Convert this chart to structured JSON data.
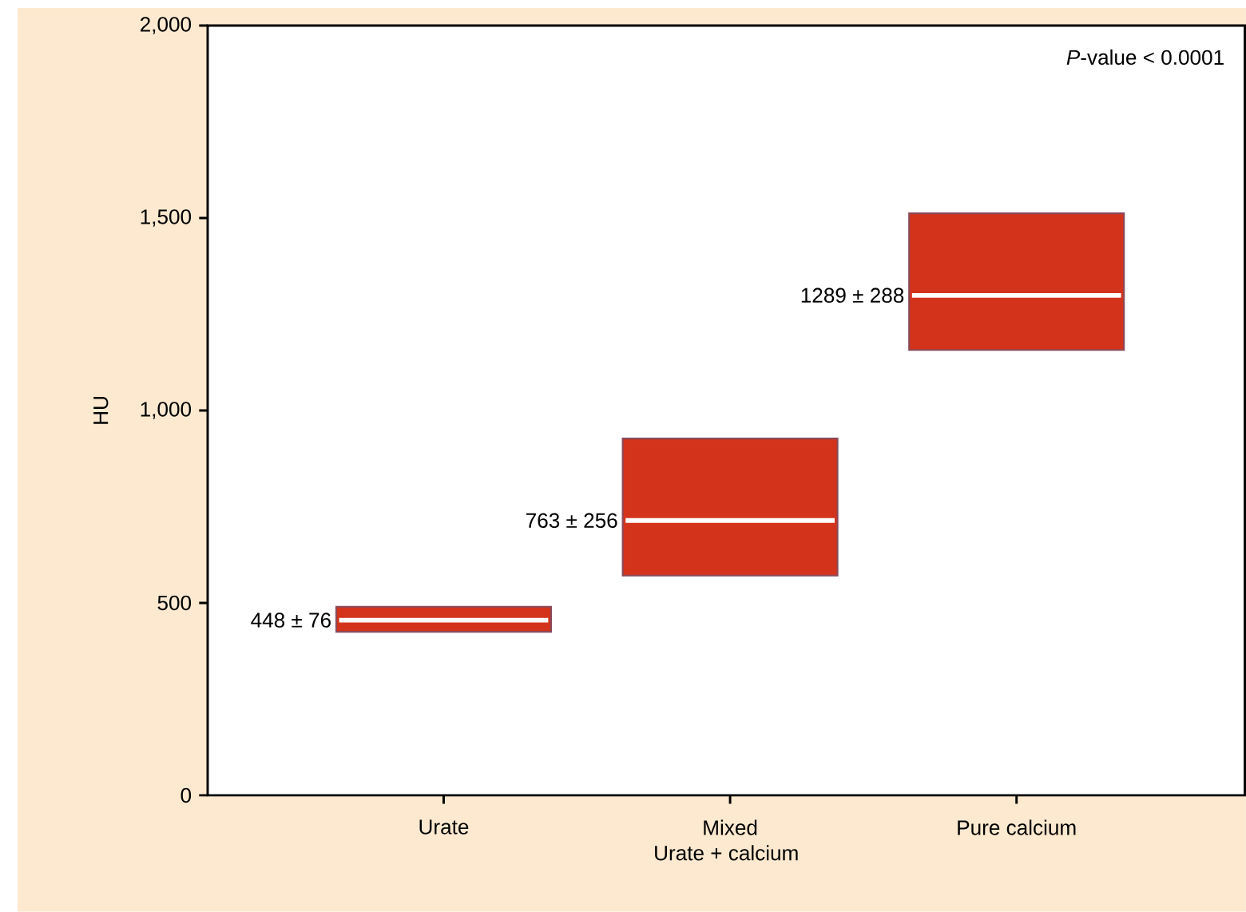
{
  "chart_data": {
    "type": "box",
    "categories": [
      "Urate",
      "Mixed",
      "Pure calcium"
    ],
    "xlabel": "Urate + calcium",
    "ylabel": "HU",
    "boxes": [
      {
        "low": 425,
        "q1": 425,
        "median": 455,
        "q3": 490,
        "high": 490
      },
      {
        "low": 571,
        "q1": 571,
        "median": 714,
        "q3": 927,
        "high": 927
      },
      {
        "low": 1157,
        "q1": 1157,
        "median": 1299,
        "q3": 1512,
        "high": 1512
      }
    ],
    "color": "#d4331b",
    "ylim": [
      0,
      2000
    ],
    "yticks": [
      0,
      {
        "value": 500,
        "label": "500"
      },
      {
        "value": 1000,
        "label": "1,000"
      },
      {
        "value": 1500,
        "label": "1,500"
      },
      {
        "value": 2000,
        "label": "2,000"
      }
    ],
    "annotations": [
      "448 ± 76",
      "763 ± 256",
      "1289 ± 288",
      "*P*-value < 0.0001"
    ],
    "grid": false
  }
}
